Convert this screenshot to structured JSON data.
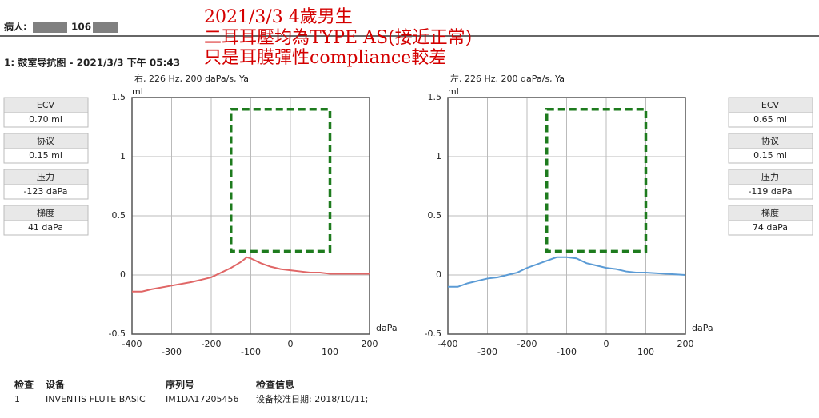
{
  "header": {
    "patient_label": "病人:",
    "patient_id": "106",
    "title": "1: 鼓室导抗图 - 2021/3/3 下午 05:43"
  },
  "annotation": [
    "2021/3/3  4歲男生",
    "二耳耳壓均為TYPE AS(接近正常)",
    "只是耳膜彈性compliance較差"
  ],
  "panels": [
    [
      {
        "label": "ECV",
        "value": "0.70 ml"
      },
      {
        "label": "协议",
        "value": "0.15 ml"
      },
      {
        "label": "压力",
        "value": "-123 daPa"
      },
      {
        "label": "梯度",
        "value": "41 daPa"
      }
    ],
    [
      {
        "label": "ECV",
        "value": "0.65 ml"
      },
      {
        "label": "协议",
        "value": "0.15 ml"
      },
      {
        "label": "压力",
        "value": "-119 daPa"
      },
      {
        "label": "梯度",
        "value": "74 daPa"
      }
    ]
  ],
  "chart_data": [
    {
      "type": "line",
      "subtitle": "右, 226 Hz, 200 daPa/s, Ya",
      "y_unit": "ml",
      "x_unit": "daPa",
      "color": "#e06666",
      "x": [
        -400,
        -375,
        -350,
        -300,
        -250,
        -200,
        -175,
        -150,
        -125,
        -110,
        -100,
        -75,
        -50,
        -25,
        0,
        25,
        50,
        75,
        100,
        150,
        200
      ],
      "values": [
        -0.14,
        -0.14,
        -0.12,
        -0.09,
        -0.06,
        -0.02,
        0.02,
        0.06,
        0.11,
        0.15,
        0.14,
        0.1,
        0.07,
        0.05,
        0.04,
        0.03,
        0.02,
        0.02,
        0.01,
        0.01,
        0.01
      ],
      "xlim": [
        -400,
        200
      ],
      "xticks": [
        -400,
        -300,
        -200,
        -100,
        0,
        100,
        200
      ],
      "ylim": [
        -0.5,
        1.5
      ],
      "yticks": [
        -0.5,
        0,
        0.5,
        1,
        1.5
      ],
      "grid": true,
      "box": {
        "x0": -150,
        "x1": 100,
        "y0": 0.2,
        "y1": 1.4,
        "color": "#1e7b1e"
      }
    },
    {
      "type": "line",
      "subtitle": "左, 226 Hz, 200 daPa/s, Ya",
      "y_unit": "ml",
      "x_unit": "daPa",
      "color": "#5b9bd5",
      "x": [
        -400,
        -375,
        -350,
        -325,
        -300,
        -275,
        -250,
        -225,
        -200,
        -175,
        -150,
        -125,
        -100,
        -75,
        -50,
        -25,
        0,
        25,
        50,
        75,
        100,
        150,
        200
      ],
      "values": [
        -0.1,
        -0.1,
        -0.07,
        -0.05,
        -0.03,
        -0.02,
        0,
        0.02,
        0.06,
        0.09,
        0.12,
        0.15,
        0.15,
        0.14,
        0.1,
        0.08,
        0.06,
        0.05,
        0.03,
        0.02,
        0.02,
        0.01,
        0
      ],
      "xlim": [
        -400,
        200
      ],
      "xticks": [
        -400,
        -300,
        -200,
        -100,
        0,
        100,
        200
      ],
      "ylim": [
        -0.5,
        1.5
      ],
      "yticks": [
        -0.5,
        0,
        0.5,
        1,
        1.5
      ],
      "grid": true,
      "box": {
        "x0": -150,
        "x1": 100,
        "y0": 0.2,
        "y1": 1.4,
        "color": "#1e7b1e"
      }
    }
  ],
  "footer": {
    "headers": [
      "检查",
      "设备",
      "序列号",
      "检查信息"
    ],
    "row": [
      "1",
      "INVENTIS FLUTE BASIC",
      "IM1DA17205456",
      "设备校准日期: 2018/10/11;"
    ]
  }
}
